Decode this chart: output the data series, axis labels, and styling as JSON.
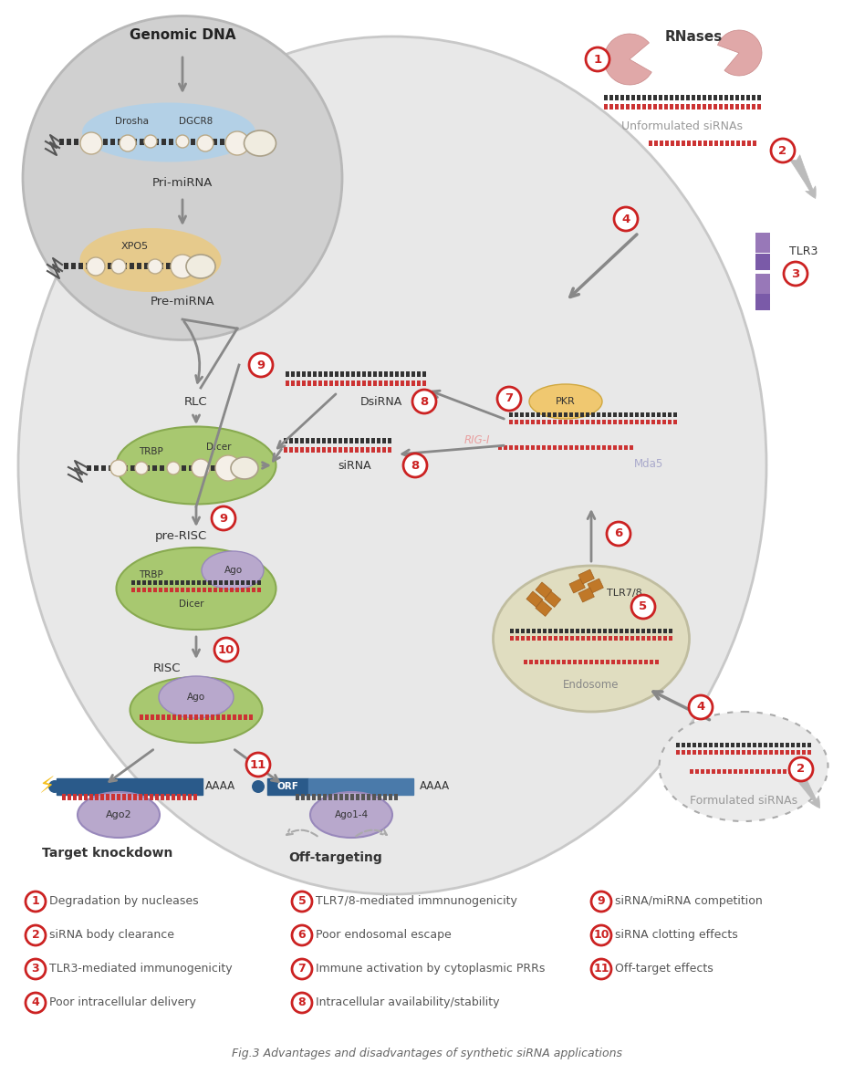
{
  "title": "Fig.3 Advantages and disadvantages of synthetic siRNA applications",
  "bg_color": "#ffffff",
  "legend_items_col1": [
    [
      1,
      "Degradation by nucleases"
    ],
    [
      2,
      "siRNA body clearance"
    ],
    [
      3,
      "TLR3-mediated immunogenicity"
    ],
    [
      4,
      "Poor intracellular delivery"
    ]
  ],
  "legend_items_col2": [
    [
      5,
      "TLR7/8-mediated immnunogenicity"
    ],
    [
      6,
      "Poor endosomal escape"
    ],
    [
      7,
      "Immune activation by cytoplasmic PRRs"
    ],
    [
      8,
      "Intracellular availability/stability"
    ]
  ],
  "legend_items_col3": [
    [
      9,
      "siRNA/miRNA competition"
    ],
    [
      10,
      "siRNA clotting effects"
    ],
    [
      11,
      "Off-target effects"
    ]
  ],
  "cell_fc": "#e8e8e8",
  "cell_ec": "#c8c8c8",
  "nucleus_fc": "#d0d0d0",
  "nucleus_ec": "#b8b8b8",
  "green_fc": "#a8c870",
  "green_ec": "#88aa50",
  "purple_fc": "#b8a8cc",
  "purple_ec": "#9888bb",
  "blue_fc": "#a8d0f0",
  "blue_ec": "#78b0e0",
  "orange_fc": "#f0c870",
  "orange_ec": "#d0a840",
  "endosome_fc": "#e0ddc0",
  "endosome_ec": "#c0bda0",
  "rnase_fc": "#e0a8a8",
  "tlr_fc": "#9878b8",
  "arrow_color": "#888888",
  "red_strand": "#cc3333",
  "black_strand": "#333333",
  "dark_blue": "#2a5a8a",
  "brown_tlr78": "#c07828"
}
